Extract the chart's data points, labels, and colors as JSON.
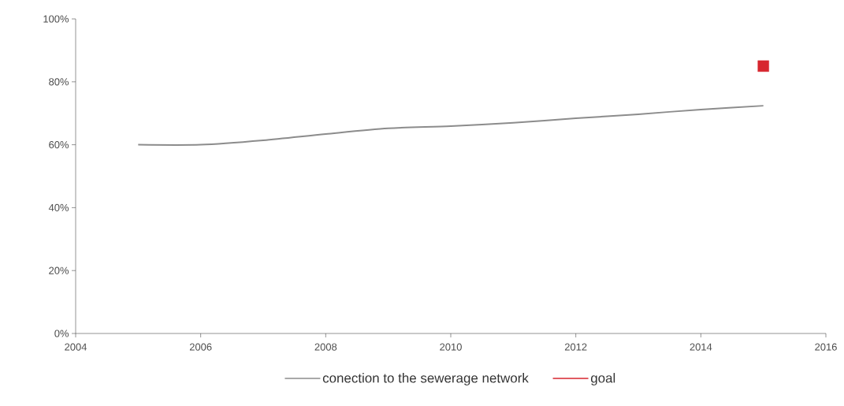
{
  "chart_data": {
    "type": "line",
    "series": [
      {
        "name": "conection to the sewerage network",
        "color": "#8c8c8c",
        "marker": "none",
        "x": [
          2005,
          2006,
          2007,
          2008,
          2009,
          2010,
          2011,
          2012,
          2013,
          2014,
          2015
        ],
        "values": [
          60,
          60,
          61.4,
          63.4,
          65.2,
          65.9,
          67,
          68.4,
          69.7,
          71.2,
          72.4
        ]
      },
      {
        "name": "goal",
        "type": "scatter",
        "color": "#d7262e",
        "marker": "square",
        "x": [
          2015
        ],
        "values": [
          85
        ]
      }
    ],
    "xlim": [
      2004,
      2016
    ],
    "xticks": [
      2004,
      2006,
      2008,
      2010,
      2012,
      2014,
      2016
    ],
    "ylim": [
      0,
      100
    ],
    "yticks": [
      {
        "value": 0,
        "label": "0%"
      },
      {
        "value": 20,
        "label": "20%"
      },
      {
        "value": 40,
        "label": "40%"
      },
      {
        "value": 60,
        "label": "60%"
      },
      {
        "value": 80,
        "label": "80%"
      },
      {
        "value": 100,
        "label": "100%"
      }
    ],
    "grid": false,
    "legend": "bottom"
  }
}
